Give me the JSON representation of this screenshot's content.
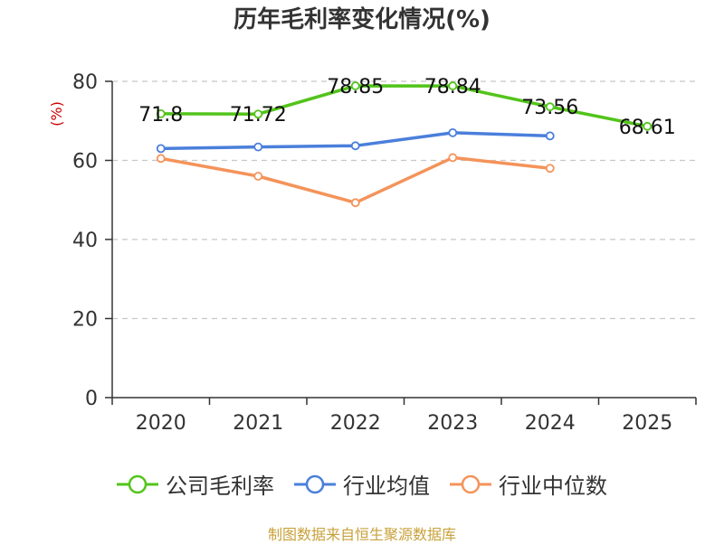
{
  "chart_data": {
    "type": "line",
    "title": "历年毛利率变化情况(%)",
    "xlabel": "",
    "ylabel": "(%)",
    "categories": [
      "2020",
      "2021",
      "2022",
      "2023",
      "2024",
      "2025"
    ],
    "ylim": [
      0,
      80
    ],
    "yticks": [
      "0",
      "20",
      "40",
      "60",
      "80"
    ],
    "grid": true,
    "legend_position": "bottom",
    "series": [
      {
        "name": "公司毛利率",
        "color": "#52c41a",
        "values": [
          71.8,
          71.72,
          78.85,
          78.84,
          73.56,
          68.61
        ],
        "labels": [
          "71.8",
          "71.72",
          "78.85",
          "78.84",
          "73.56",
          "68.61"
        ]
      },
      {
        "name": "行业均值",
        "color": "#4a7fdb",
        "values": [
          63.0,
          63.4,
          63.7,
          67.0,
          66.2,
          null
        ]
      },
      {
        "name": "行业中位数",
        "color": "#f4935a",
        "values": [
          60.5,
          56.0,
          49.3,
          60.7,
          58.0,
          null
        ]
      }
    ]
  },
  "footer": {
    "source": "制图数据来自恒生聚源数据库"
  }
}
